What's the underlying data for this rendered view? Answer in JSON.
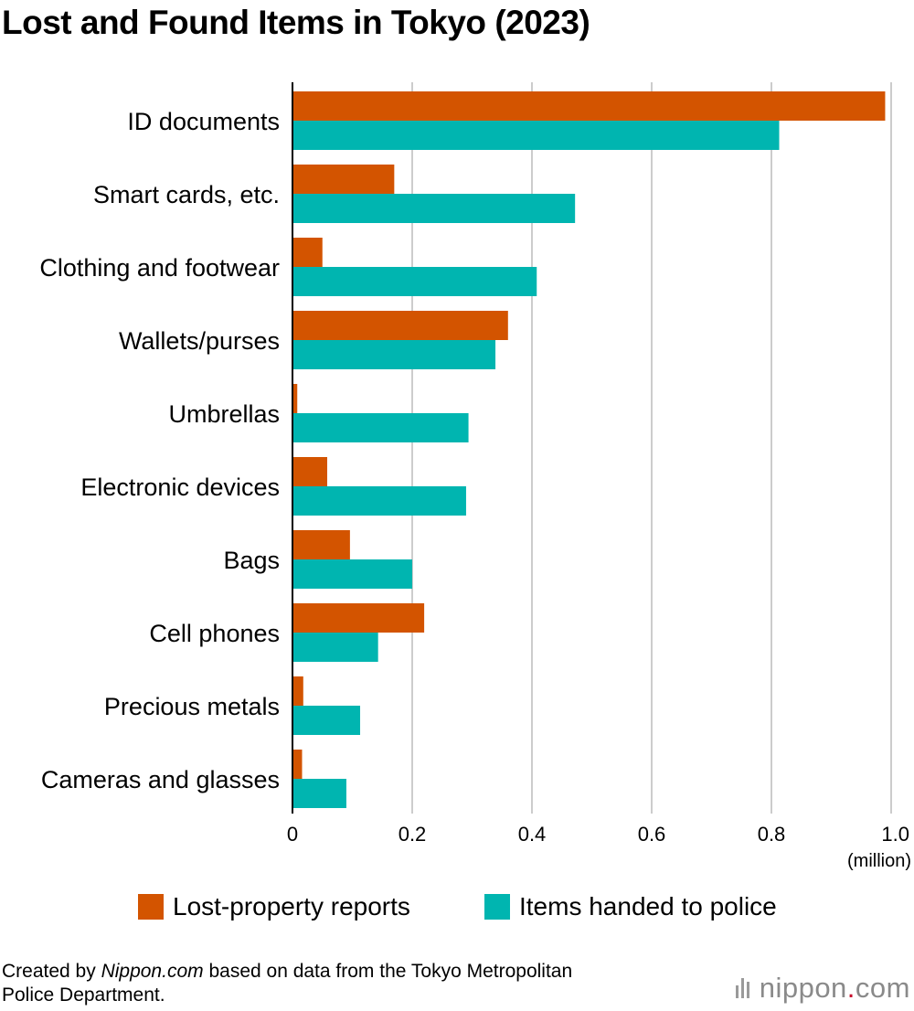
{
  "chart_data": {
    "type": "bar",
    "orientation": "horizontal",
    "title": "Lost and Found Items in Tokyo (2023)",
    "categories": [
      "ID documents",
      "Smart cards, etc.",
      "Clothing and footwear",
      "Wallets/purses",
      "Umbrellas",
      "Electronic devices",
      "Bags",
      "Cell phones",
      "Precious metals",
      "Cameras and glasses"
    ],
    "series": [
      {
        "name": "Lost-property reports",
        "color": "#d35400",
        "values": [
          0.99,
          0.17,
          0.05,
          0.36,
          0.008,
          0.058,
          0.096,
          0.22,
          0.018,
          0.016
        ]
      },
      {
        "name": "Items handed to police",
        "color": "#00b5b0",
        "values": [
          0.813,
          0.472,
          0.408,
          0.339,
          0.294,
          0.29,
          0.2,
          0.143,
          0.113,
          0.09
        ]
      }
    ],
    "xlim": [
      0,
      1.0
    ],
    "ticks": [
      "0",
      "0.2",
      "0.4",
      "0.6",
      "0.8",
      "1.0"
    ],
    "tick_values": [
      0,
      0.2,
      0.4,
      0.6,
      0.8,
      1.0
    ],
    "unit": "(million)",
    "grid": true,
    "legend": "bottom"
  },
  "legend": {
    "item1": "Lost-property reports",
    "item2": "Items handed to police"
  },
  "source": {
    "prefix": "Created by ",
    "site": "Nippon.com",
    "suffix": " based on data from the Tokyo Metropolitan",
    "line2": "Police Department."
  },
  "logo": {
    "name": "nippon",
    "dot": ".",
    "tld": "com"
  },
  "colors": {
    "lost": "#d35400",
    "found": "#00b5b0",
    "grid": "#cccccc"
  }
}
